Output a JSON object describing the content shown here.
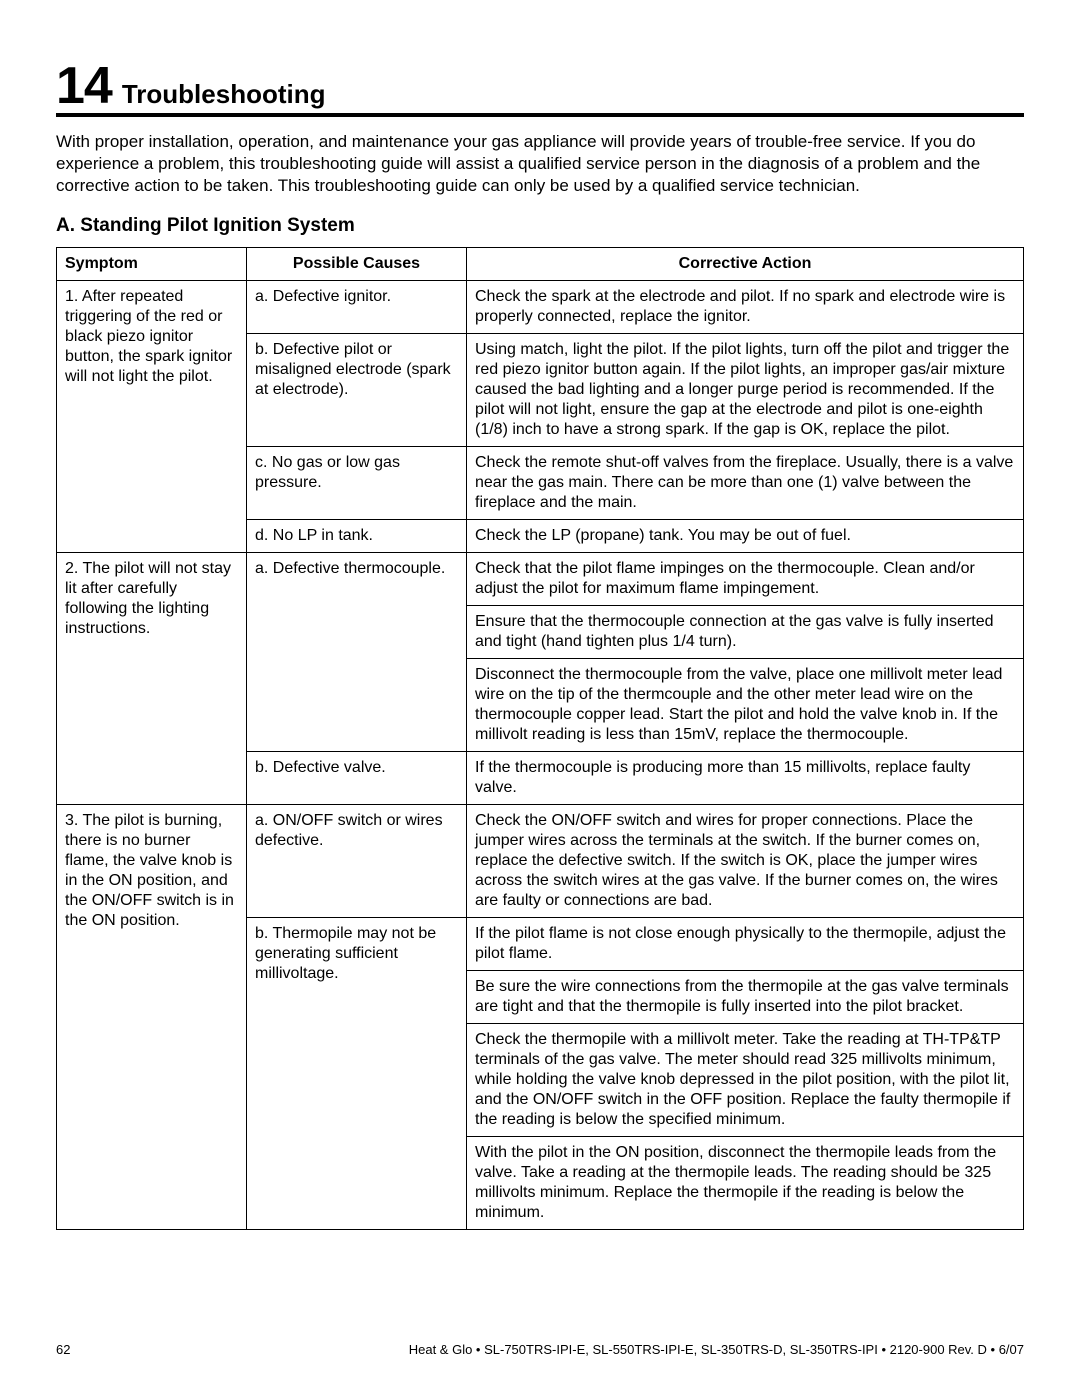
{
  "section": {
    "number": "14",
    "title": "Troubleshooting"
  },
  "intro": "With proper installation, operation, and maintenance your gas appliance will provide years of trouble-free service.  If you do experience a problem, this troubleshooting guide will assist a qualified service person in the diagnosis of a problem and the corrective action to be taken. This troubleshooting guide can only be used by a qualified service technician.",
  "subsection": "A.  Standing Pilot Ignition System",
  "headers": {
    "symptom": "Symptom",
    "causes": "Possible Causes",
    "action": "Corrective Action"
  },
  "rows": {
    "s1": "1.  After repeated triggering of the red or black piezo ignitor button, the spark ignitor will not light the pilot.",
    "s2": "2.  The pilot will not stay lit after carefully following the lighting instructions.",
    "s3": "3.  The pilot is burning, there is no burner flame, the valve knob is in the ON position, and the ON/OFF switch is in the ON position.",
    "c1a": "a. Defective ignitor.",
    "c1b": "b. Defective pilot or misaligned electrode (spark at electrode).",
    "c1c": "c. No gas or low gas pressure.",
    "c1d": "d.  No LP in tank.",
    "c2a": "a. Defective thermocouple.",
    "c2b": "b.  Defective valve.",
    "c3a": "a. ON/OFF switch or wires defective.",
    "c3b": "b. Thermopile may not be generating sufficient millivoltage.",
    "a1a": "Check the spark at the electrode and pilot. If no spark and electrode wire is properly connected, replace the ignitor.",
    "a1b": "Using match, light the pilot. If the pilot lights, turn off the pilot and trigger the red piezo ignitor button again. If the pilot lights, an improper gas/air mixture caused the bad lighting and a longer purge period is recommended. If the pilot will not light, ensure the gap at the electrode and pilot is one-eighth (1/8) inch to have a strong spark. If the gap is OK, replace the pilot.",
    "a1c": "Check the remote shut-off valves from the fireplace. Usually, there is a valve near the gas main. There can be more than one (1) valve between the fireplace and the main.",
    "a1d": "Check the LP (propane) tank. You may be out of fuel.",
    "a2a1": "Check that the pilot flame impinges on the thermocouple. Clean and/or adjust the pilot for maximum flame impingement.",
    "a2a2": "Ensure that the thermocouple connection at the gas valve is fully inserted and tight (hand tighten plus 1/4 turn).",
    "a2a3": "Disconnect the thermocouple from the valve, place one millivolt meter lead wire on the tip of the thermcouple and the other meter lead wire on the thermocouple copper lead. Start the pilot and hold the valve knob in. If the millivolt reading is less than 15mV, replace the thermocouple.",
    "a2b": "If the thermocouple is producing more than 15 millivolts, replace faulty valve.",
    "a3a": "Check the ON/OFF switch and wires for proper connections. Place the jumper wires across the terminals at the switch. If the burner comes on, replace the defective switch. If the switch is OK, place the jumper wires across the switch wires at the gas valve. If the burner comes on, the wires are faulty or connections are bad.",
    "a3b1": "If the pilot flame is not close enough physically to the thermopile, adjust the pilot flame.",
    "a3b2": "Be sure the wire connections from the thermopile at the gas valve terminals are tight and that the thermopile is fully inserted into the pilot bracket.",
    "a3b3": "Check the thermopile with a millivolt meter. Take the reading at TH-TP&TP terminals of the gas valve. The meter should read 325 millivolts minimum, while holding the valve knob depressed in the pilot position, with the pilot lit, and the ON/OFF switch in the OFF position. Replace the faulty thermopile if the reading is below the specified minimum.",
    "a3b4": "With the pilot in the ON position, disconnect the thermopile leads from the valve. Take a reading at the thermopile leads. The reading should be 325 millivolts minimum. Replace the thermopile if the reading is below the minimum."
  },
  "footer": {
    "page": "62",
    "text": "Heat & Glo  •  SL-750TRS-IPI-E, SL-550TRS-IPI-E, SL-350TRS-D, SL-350TRS-IPI  •  2120-900 Rev. D  •  6/07"
  }
}
